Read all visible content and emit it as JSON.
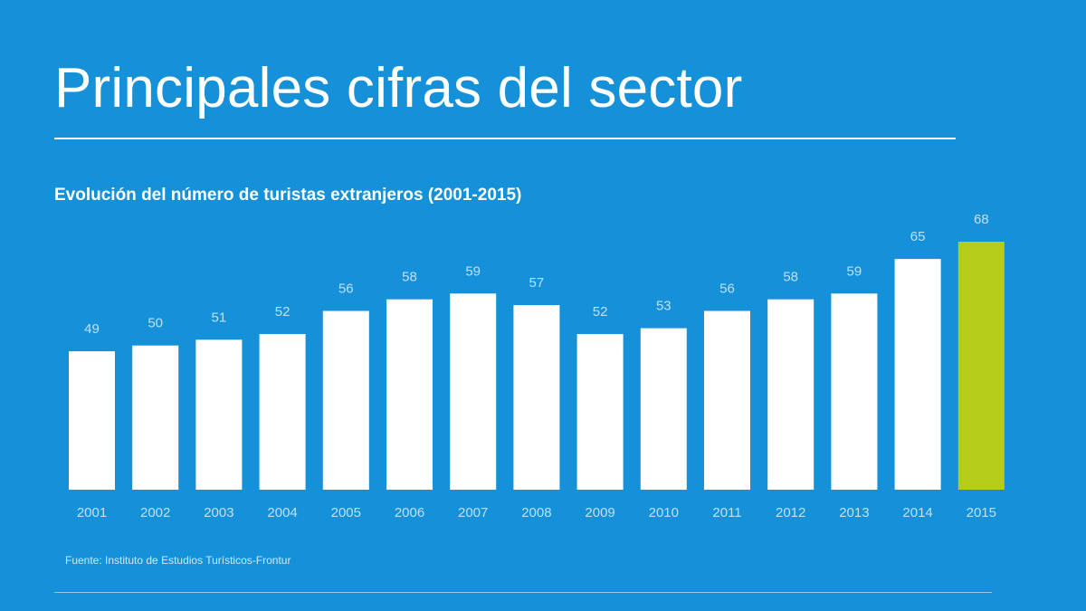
{
  "title": "Principales cifras del sector",
  "subtitle": "Evolución del número de turistas extranjeros (2001-2015)",
  "source": "Fuente: Instituto de Estudios Turísticos-Frontur",
  "colors": {
    "background": "#1591d9",
    "bar": "#ffffff",
    "highlight_bar": "#b5cc18",
    "label": "#bfe0f6"
  },
  "chart_data": {
    "type": "bar",
    "title": "Evolución del número de turistas extranjeros (2001-2015)",
    "categories": [
      "2001",
      "2002",
      "2003",
      "2004",
      "2005",
      "2006",
      "2007",
      "2008",
      "2009",
      "2010",
      "2011",
      "2012",
      "2013",
      "2014",
      "2015"
    ],
    "values": [
      49,
      50,
      51,
      52,
      56,
      58,
      59,
      57,
      52,
      53,
      56,
      58,
      59,
      65,
      68
    ],
    "highlight": "2015",
    "xlabel": "",
    "ylabel": "",
    "ylim": [
      25,
      68
    ],
    "grid": false
  }
}
